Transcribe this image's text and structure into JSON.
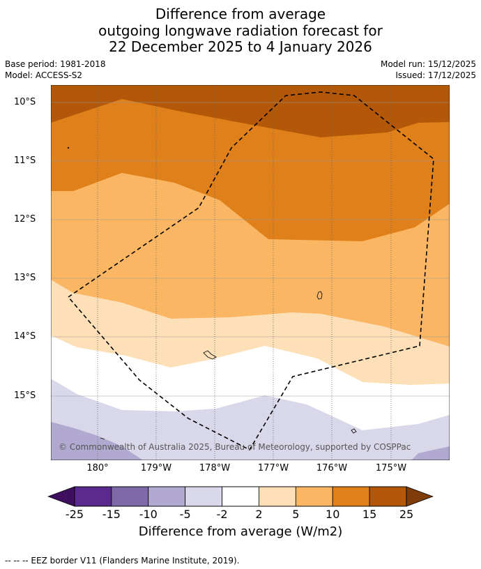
{
  "title": {
    "line1": "Difference from average",
    "line2": "outgoing longwave radiation forecast for",
    "line3": "22 December 2025 to 4 January 2026"
  },
  "meta": {
    "base_period": "Base period: 1981-2018",
    "model": "Model: ACCESS-S2",
    "model_run": "Model run: 15/12/2025",
    "issued": "Issued: 17/12/2025"
  },
  "map": {
    "lat_labels": [
      "10°S",
      "11°S",
      "12°S",
      "13°S",
      "14°S",
      "15°S"
    ],
    "lon_labels": [
      "180°",
      "179°W",
      "178°W",
      "177°W",
      "176°W",
      "175°W"
    ],
    "copyright": "© Commonwealth of Australia 2025, Bureau of Meteorology, supported by COSPPac"
  },
  "colorbar": {
    "ticks": [
      "-25",
      "-15",
      "-10",
      "-5",
      "-2",
      "2",
      "5",
      "10",
      "15",
      "25"
    ],
    "colors": [
      "#5a2a8e",
      "#7e6aa8",
      "#b2a9d1",
      "#d8d8ea",
      "#ffffff",
      "#fde0b8",
      "#fab663",
      "#e0801a",
      "#b25808"
    ],
    "under_color": "#3e0f5e",
    "over_color": "#7f3c0b",
    "label": "Difference from average (W/m2)"
  },
  "footer": "--  --  -- EEZ border V11 (Flanders Marine Institute, 2019)."
}
